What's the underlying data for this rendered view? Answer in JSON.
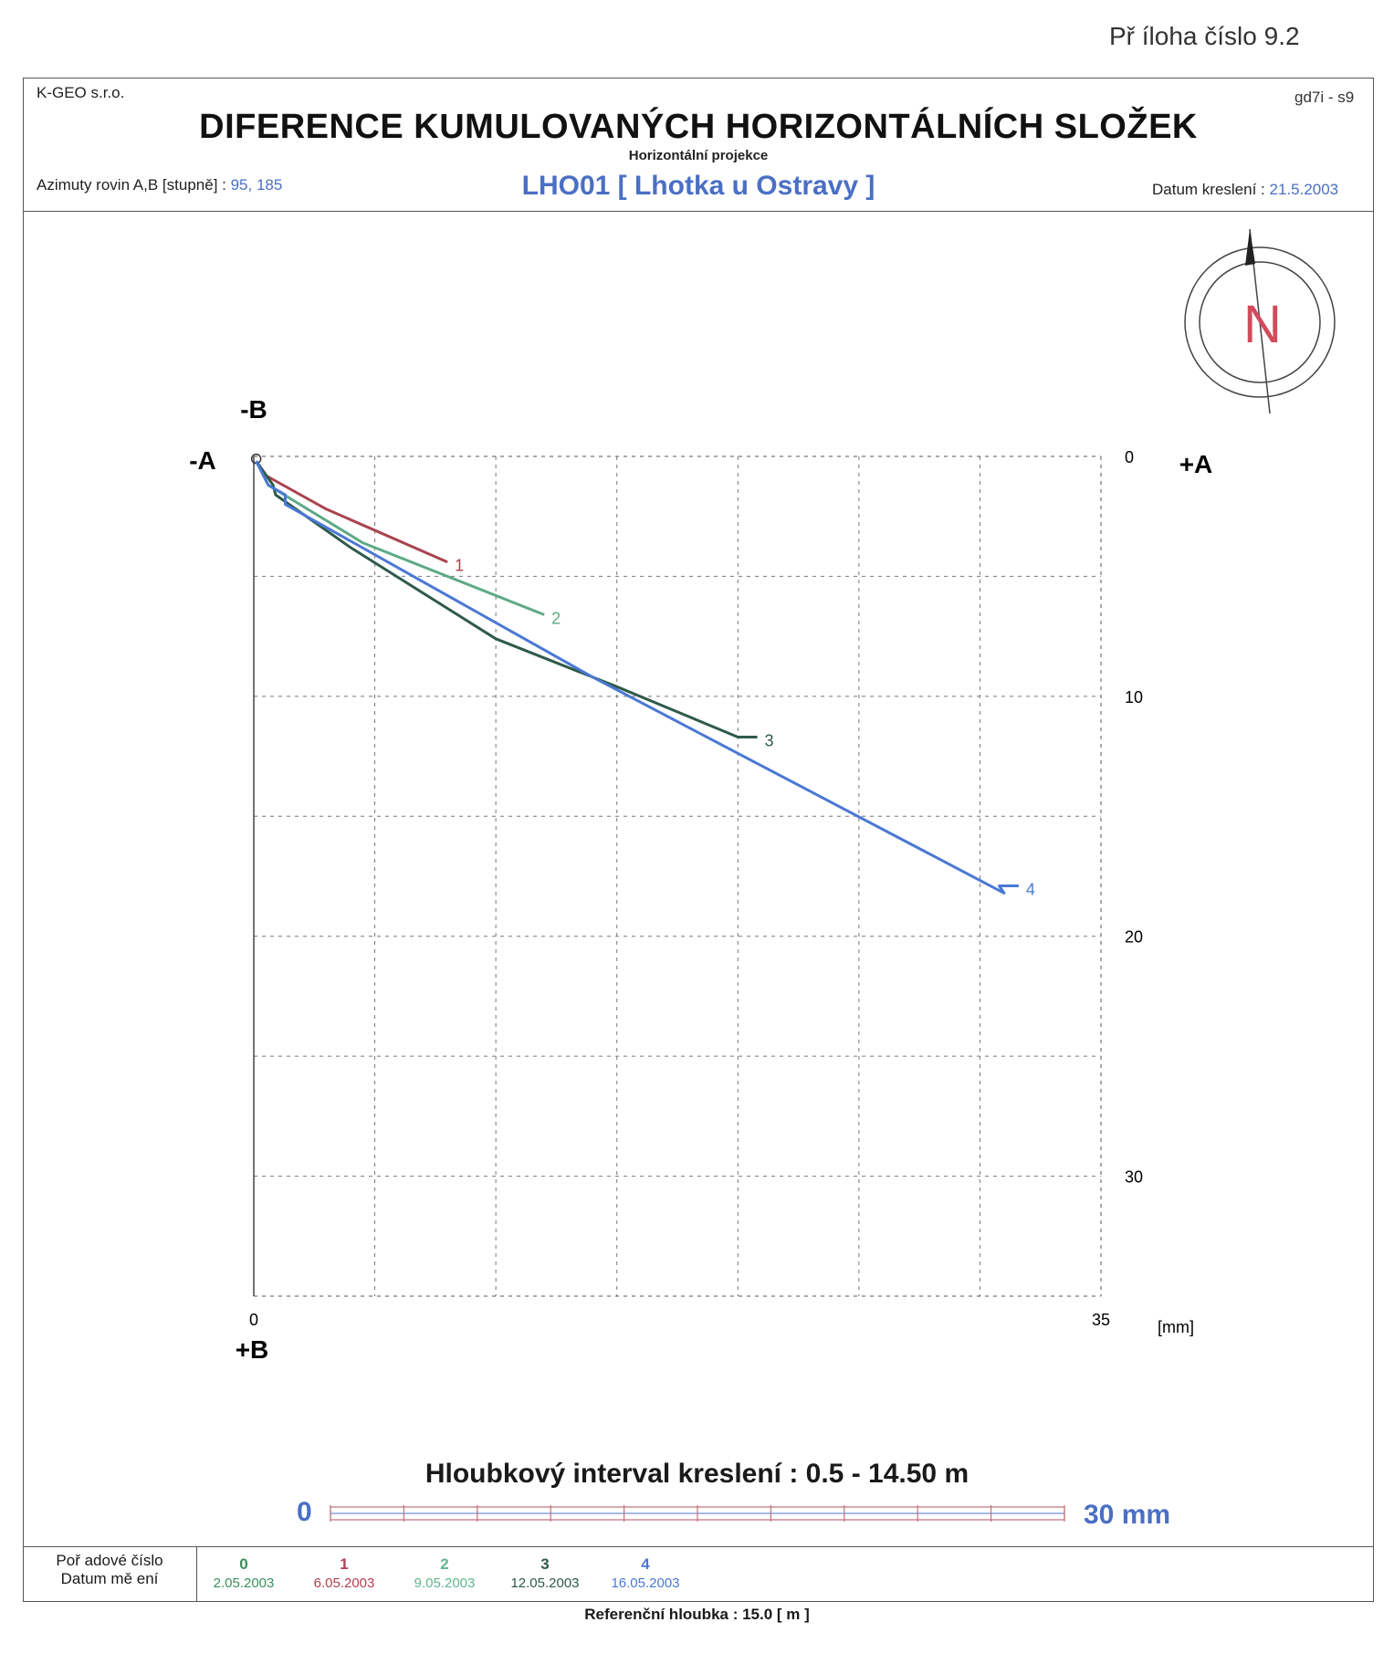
{
  "appendix": "Př íloha číslo 9.2",
  "header": {
    "company": "K-GEO s.r.o.",
    "code": "gd7i - s9",
    "title": "DIFERENCE KUMULOVANÝCH HORIZONTÁLNÍCH SLOŽEK",
    "subtitle": "Horizontální projekce",
    "azimuth_label": "Azimuty rovin A,B [stupně] : ",
    "azimuth_value": "95, 185",
    "location": "LHO01 [ Lhotka u Ostravy ]",
    "date_label": "Datum kreslení : ",
    "date_value": "21.5.2003"
  },
  "compass": {
    "icon": "north-arrow-icon",
    "letter": "N",
    "color": "#d24b5a"
  },
  "chart_data": {
    "type": "line",
    "x_range": [
      0,
      35
    ],
    "y_range": [
      0,
      35
    ],
    "y_inverted": true,
    "grid": true,
    "x_ticks": [
      "0",
      "35"
    ],
    "y_ticks": [
      "0",
      "10",
      "20",
      "30"
    ],
    "unit": "[mm]",
    "axis_labels": {
      "minus_a": "-A",
      "plus_a": "+A",
      "minus_b": "-B",
      "plus_b": "+B"
    },
    "series": [
      {
        "name": "1",
        "color": "#a84450",
        "points": [
          [
            0.1,
            0.2
          ],
          [
            0.5,
            0.8
          ],
          [
            3.0,
            2.2
          ],
          [
            8.0,
            4.4
          ]
        ],
        "end_label": "1"
      },
      {
        "name": "2",
        "color": "#5daa86",
        "points": [
          [
            0.1,
            0.2
          ],
          [
            0.6,
            1.2
          ],
          [
            4.5,
            3.6
          ],
          [
            12.0,
            6.6
          ]
        ],
        "end_label": "2"
      },
      {
        "name": "3",
        "color": "#2f5a48",
        "points": [
          [
            0.1,
            0.2
          ],
          [
            0.8,
            1.2
          ],
          [
            0.9,
            1.6
          ],
          [
            4.0,
            3.8
          ],
          [
            10.0,
            7.6
          ],
          [
            15.0,
            9.6
          ],
          [
            20.0,
            11.7
          ],
          [
            20.8,
            11.7
          ]
        ],
        "end_label": "3"
      },
      {
        "name": "4",
        "color": "#4a78d4",
        "points": [
          [
            0.1,
            0.2
          ],
          [
            0.6,
            1.2
          ],
          [
            1.3,
            1.6
          ],
          [
            1.3,
            2.0
          ],
          [
            14.0,
            9.2
          ],
          [
            31.0,
            18.2
          ],
          [
            30.8,
            17.9
          ],
          [
            31.6,
            17.9
          ]
        ],
        "end_label": "4"
      }
    ]
  },
  "depth_interval": "Hloubkový interval kreslení : 0.5 - 14.50 m",
  "scale_bar": {
    "start": "0",
    "end": "30 mm"
  },
  "legend": {
    "order_label": "Poř adové číslo",
    "date_label": "Datum mě ení",
    "entries": [
      {
        "num": "0",
        "date": "2.05.2003",
        "color": "#3b8f5e"
      },
      {
        "num": "1",
        "date": "6.05.2003",
        "color": "#b04050"
      },
      {
        "num": "2",
        "date": "9.05.2003",
        "color": "#5fb690"
      },
      {
        "num": "3",
        "date": "12.05.2003",
        "color": "#2f5a48"
      },
      {
        "num": "4",
        "date": "16.05.2003",
        "color": "#4a78d4"
      }
    ]
  },
  "reference_depth": "Referenční hloubka : 15.0 [ m ]"
}
